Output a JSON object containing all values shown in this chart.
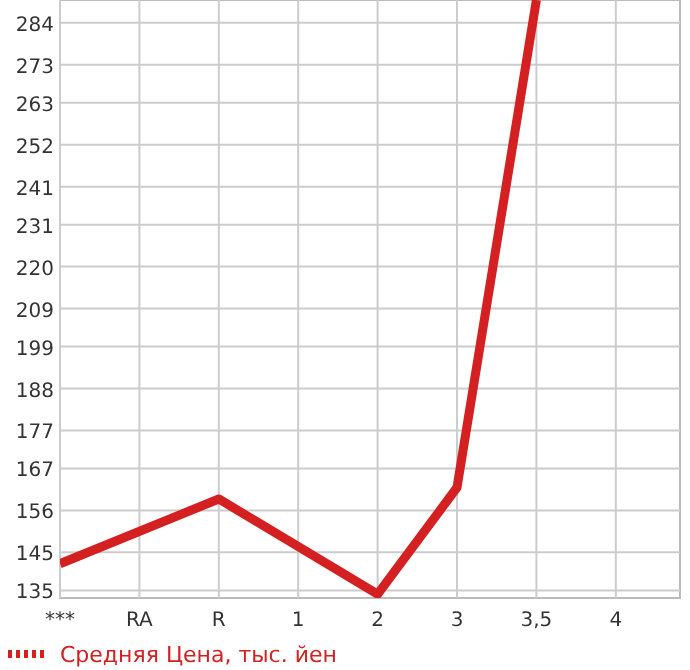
{
  "chart_data": {
    "type": "line",
    "categories": [
      "***",
      "RA",
      "R",
      "1",
      "2",
      "3",
      "3,5",
      "4"
    ],
    "series": [
      {
        "name": "Средняя Цена, тыс. йен",
        "color": "#d42020",
        "values": [
          142,
          null,
          159,
          null,
          134,
          162,
          290,
          null
        ]
      }
    ],
    "ylim": [
      133,
      290
    ],
    "yticks": [
      135,
      145,
      156,
      167,
      177,
      188,
      199,
      209,
      220,
      231,
      241,
      252,
      263,
      273,
      284
    ],
    "grid": true,
    "legend": "bottom",
    "marker": "none",
    "line_style": "solid"
  }
}
